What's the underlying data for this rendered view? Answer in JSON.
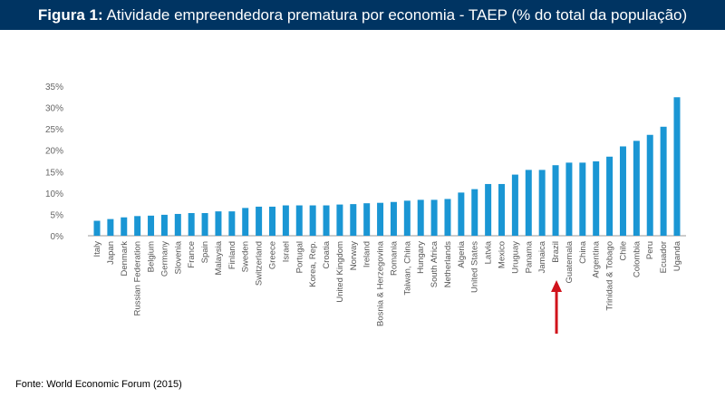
{
  "header": {
    "figure_label": "Figura 1:",
    "title": "Atividade empreendedora prematura por economia - TAEP (% do total da população)"
  },
  "source": "Fonte: World Economic Forum (2015)",
  "chart_data": {
    "type": "bar",
    "title": "Atividade empreendedora prematura por economia - TAEP (% do total da população)",
    "xlabel": "",
    "ylabel": "",
    "ylim": [
      0,
      35
    ],
    "yticks": [
      "0%",
      "5%",
      "10%",
      "15%",
      "20%",
      "25%",
      "30%",
      "35%"
    ],
    "grid": false,
    "bar_color": "#1a96d4",
    "highlight": {
      "category": "Brazil",
      "marker": "red-up-arrow",
      "color": "#d0121b"
    },
    "categories": [
      "Italy",
      "Japan",
      "Denmark",
      "Russian Federation",
      "Belgium",
      "Germany",
      "Slovenia",
      "France",
      "Spain",
      "Malaysia",
      "Finland",
      "Sweden",
      "Switzerland",
      "Greece",
      "Israel",
      "Portugal",
      "Korea, Rep.",
      "Croatia",
      "United Kingdom",
      "Norway",
      "Ireland",
      "Bosnia & Herzegovina",
      "Romania",
      "Taiwan, China",
      "Hungary",
      "South Africa",
      "Netherlands",
      "Algeria",
      "United States",
      "Latvia",
      "Mexico",
      "Uruguay",
      "Panama",
      "Jamaica",
      "Brazil",
      "Guatemala",
      "China",
      "Argentina",
      "Trinidad & Tobago",
      "Chile",
      "Colombia",
      "Peru",
      "Ecuador",
      "Uganda"
    ],
    "values": [
      3.5,
      3.9,
      4.3,
      4.6,
      4.7,
      4.9,
      5.1,
      5.3,
      5.3,
      5.7,
      5.7,
      6.5,
      6.8,
      6.8,
      7.1,
      7.1,
      7.1,
      7.1,
      7.3,
      7.4,
      7.6,
      7.7,
      7.9,
      8.2,
      8.4,
      8.4,
      8.6,
      10.1,
      10.9,
      12.1,
      12.1,
      14.3,
      15.4,
      15.4,
      16.5,
      17.1,
      17.1,
      17.4,
      18.5,
      20.9,
      22.2,
      23.6,
      25.5,
      32.4
    ]
  }
}
